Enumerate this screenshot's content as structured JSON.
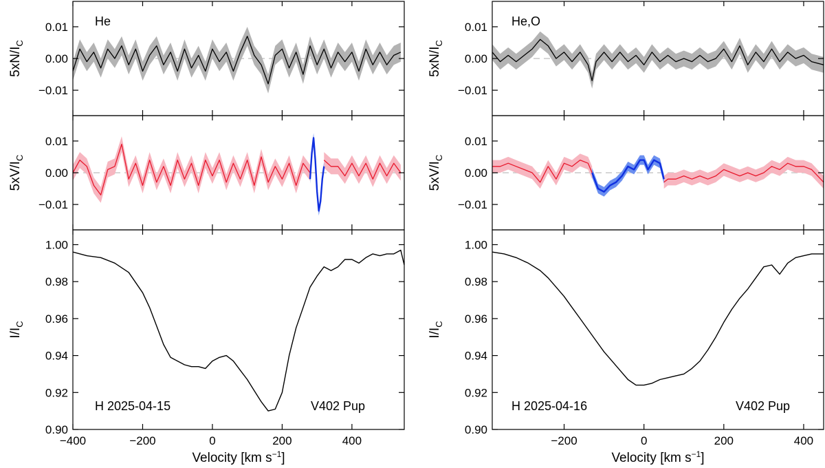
{
  "chart_data": [
    {
      "type": "line",
      "title": "",
      "columns": [
        {
          "star": "V402 Pup",
          "date_label": "H 2025-04-15",
          "element_label": "He",
          "xlim": [
            -400,
            550
          ],
          "xticks": [
            -400,
            -200,
            0,
            200,
            400
          ],
          "xtick_labels": [
            "−400",
            "−200",
            "0",
            "200",
            "400"
          ],
          "xlabel": "Velocity [km s⁻¹]",
          "panels": [
            {
              "kind": "null",
              "ylabel": "5xN/Iₗ",
              "ylim": [
                -0.018,
                0.018
              ],
              "yticks": [
                -0.01,
                0.0,
                0.01
              ],
              "ytick_labels": [
                "−0.01",
                "0.00",
                "0.01"
              ],
              "dashed_zero": true,
              "color": "#000000",
              "band_color": "#b3b3b3",
              "x": [
                -400,
                -380,
                -360,
                -340,
                -320,
                -300,
                -280,
                -260,
                -240,
                -220,
                -200,
                -180,
                -160,
                -140,
                -120,
                -100,
                -80,
                -60,
                -40,
                -20,
                0,
                20,
                40,
                60,
                80,
                100,
                120,
                140,
                160,
                180,
                200,
                220,
                240,
                260,
                280,
                300,
                320,
                340,
                360,
                380,
                400,
                420,
                440,
                460,
                480,
                500,
                520,
                540
              ],
              "y": [
                -0.004,
                0.003,
                -0.001,
                0.002,
                -0.003,
                0.003,
                0.0,
                0.004,
                -0.002,
                0.003,
                -0.004,
                0.001,
                0.004,
                -0.002,
                0.002,
                -0.004,
                0.003,
                -0.003,
                0.001,
                -0.004,
                0.003,
                -0.001,
                0.002,
                -0.004,
                0.002,
                0.007,
                0.001,
                -0.002,
                -0.008,
                0.001,
                0.003,
                -0.003,
                0.002,
                -0.005,
                0.004,
                -0.002,
                0.003,
                -0.003,
                0.002,
                -0.001,
                0.002,
                -0.004,
                0.003,
                -0.002,
                0.002,
                -0.002,
                0.001,
                0.002
              ],
              "err": 0.003
            },
            {
              "kind": "stokesV",
              "ylabel": "5xV/Iₗ",
              "ylim": [
                -0.018,
                0.018
              ],
              "yticks": [
                -0.01,
                0.0,
                0.01
              ],
              "ytick_labels": [
                "−0.01",
                "0.00",
                "0.01"
              ],
              "dashed_zero": true,
              "color": "#e8182c",
              "band_color": "#f7b6c0",
              "x": [
                -400,
                -380,
                -360,
                -340,
                -320,
                -300,
                -280,
                -260,
                -240,
                -220,
                -200,
                -180,
                -160,
                -140,
                -120,
                -100,
                -80,
                -60,
                -40,
                -20,
                0,
                20,
                40,
                60,
                80,
                100,
                120,
                140,
                160,
                180,
                200,
                220,
                240,
                260,
                280
              ],
              "y": [
                0.0,
                0.004,
                0.002,
                -0.004,
                -0.007,
                0.001,
                0.002,
                0.009,
                -0.002,
                0.003,
                -0.004,
                0.004,
                -0.003,
                0.002,
                -0.004,
                0.004,
                -0.002,
                0.003,
                -0.004,
                0.004,
                -0.001,
                0.004,
                -0.003,
                0.003,
                -0.002,
                0.004,
                -0.004,
                0.005,
                -0.003,
                0.002,
                -0.002,
                0.003,
                -0.004,
                0.003,
                0.0
              ],
              "x_tail": [
                320,
                340,
                360,
                380,
                400,
                420,
                440,
                460,
                480,
                500,
                520,
                540
              ],
              "y_tail": [
                0.004,
                0.002,
                0.002,
                -0.001,
                0.003,
                -0.001,
                0.003,
                -0.002,
                0.003,
                -0.001,
                0.003,
                0.0
              ],
              "err": 0.0025,
              "highlight": {
                "color": "#1030e0",
                "band_color": "#6b8ff0",
                "x": [
                  280,
                  285,
                  290,
                  295,
                  300,
                  305,
                  310,
                  315,
                  320
                ],
                "y": [
                  -0.002,
                  0.006,
                  0.011,
                  0.004,
                  -0.006,
                  -0.012,
                  -0.009,
                  -0.002,
                  0.002
                ],
                "err": 0.0015
              }
            },
            {
              "kind": "intensity",
              "ylabel": "I/Iₗ",
              "ylim": [
                0.9,
                1.008
              ],
              "yticks": [
                0.9,
                0.92,
                0.94,
                0.96,
                0.98,
                1.0
              ],
              "ytick_labels": [
                "0.90",
                "0.92",
                "0.94",
                "0.96",
                "0.98",
                "1.00"
              ],
              "color": "#000000",
              "x": [
                -400,
                -360,
                -320,
                -280,
                -240,
                -200,
                -180,
                -160,
                -140,
                -120,
                -100,
                -80,
                -60,
                -40,
                -20,
                0,
                20,
                40,
                60,
                80,
                100,
                120,
                140,
                160,
                180,
                200,
                220,
                240,
                260,
                280,
                300,
                320,
                340,
                360,
                380,
                400,
                420,
                440,
                460,
                480,
                500,
                520,
                540,
                550
              ],
              "y": [
                0.996,
                0.994,
                0.993,
                0.99,
                0.985,
                0.974,
                0.966,
                0.956,
                0.946,
                0.939,
                0.937,
                0.935,
                0.934,
                0.934,
                0.933,
                0.937,
                0.939,
                0.94,
                0.937,
                0.932,
                0.927,
                0.921,
                0.915,
                0.91,
                0.911,
                0.92,
                0.94,
                0.955,
                0.966,
                0.977,
                0.983,
                0.988,
                0.986,
                0.988,
                0.992,
                0.992,
                0.99,
                0.993,
                0.995,
                0.994,
                0.995,
                0.995,
                0.997,
                0.989
              ]
            }
          ]
        },
        {
          "star": "V402 Pup",
          "date_label": "H 2025-04-16",
          "element_label": "He,O",
          "xlim": [
            -380,
            450
          ],
          "xticks": [
            -200,
            0,
            200,
            400
          ],
          "xtick_labels": [
            "−200",
            "0",
            "200",
            "400"
          ],
          "xlabel": "Velocity [km s⁻¹]",
          "panels": [
            {
              "kind": "null",
              "ylabel": "5xN/Iₗ",
              "ylim": [
                -0.018,
                0.018
              ],
              "yticks": [
                -0.01,
                0.0,
                0.01
              ],
              "ytick_labels": [
                "−0.01",
                "0.00",
                "0.01"
              ],
              "dashed_zero": true,
              "color": "#000000",
              "band_color": "#b3b3b3",
              "x": [
                -380,
                -360,
                -340,
                -320,
                -300,
                -280,
                -260,
                -240,
                -220,
                -200,
                -180,
                -160,
                -140,
                -130,
                -120,
                -100,
                -80,
                -60,
                -40,
                -20,
                0,
                20,
                40,
                60,
                80,
                100,
                120,
                140,
                160,
                180,
                200,
                220,
                240,
                260,
                280,
                300,
                320,
                340,
                360,
                380,
                400,
                420,
                450
              ],
              "y": [
                0.002,
                -0.001,
                0.001,
                -0.001,
                0.001,
                0.003,
                0.006,
                0.004,
                0.0,
                0.002,
                -0.001,
                0.002,
                -0.002,
                -0.007,
                -0.001,
                0.002,
                -0.001,
                0.002,
                -0.001,
                0.001,
                -0.002,
                0.002,
                -0.001,
                0.001,
                -0.001,
                0.0,
                -0.001,
                0.001,
                -0.001,
                0.0,
                0.003,
                -0.001,
                0.004,
                -0.002,
                0.002,
                -0.001,
                0.003,
                -0.001,
                0.002,
                0.0,
                0.001,
                -0.001,
                -0.002
              ],
              "err": 0.0025
            },
            {
              "kind": "stokesV",
              "ylabel": "5xV/Iₗ",
              "ylim": [
                -0.018,
                0.018
              ],
              "yticks": [
                -0.01,
                0.0,
                0.01
              ],
              "ytick_labels": [
                "−0.01",
                "0.00",
                "0.01"
              ],
              "dashed_zero": true,
              "color": "#e8182c",
              "band_color": "#f7b6c0",
              "x": [
                -380,
                -360,
                -340,
                -320,
                -300,
                -280,
                -260,
                -240,
                -220,
                -200,
                -180,
                -160,
                -140,
                -130
              ],
              "y": [
                0.002,
                0.002,
                0.003,
                0.002,
                0.001,
                0.0,
                -0.003,
                0.002,
                -0.002,
                0.003,
                0.002,
                0.004,
                0.003,
                0.0
              ],
              "x_tail": [
                50,
                60,
                80,
                100,
                120,
                140,
                160,
                180,
                200,
                220,
                240,
                260,
                280,
                300,
                320,
                340,
                360,
                380,
                400,
                420,
                450
              ],
              "y_tail": [
                -0.003,
                -0.002,
                -0.002,
                -0.001,
                -0.002,
                -0.001,
                -0.002,
                -0.001,
                0.001,
                0.0,
                -0.001,
                0.0,
                -0.001,
                0.0,
                0.002,
                0.001,
                0.003,
                0.002,
                0.002,
                0.001,
                -0.003
              ],
              "err": 0.002,
              "highlight": {
                "color": "#1030e0",
                "band_color": "#6b8ff0",
                "x": [
                  -130,
                  -115,
                  -100,
                  -85,
                  -70,
                  -55,
                  -40,
                  -25,
                  -10,
                  0,
                  10,
                  25,
                  40,
                  50
                ],
                "y": [
                  0.0,
                  -0.005,
                  -0.006,
                  -0.004,
                  -0.003,
                  -0.001,
                  0.002,
                  0.001,
                  0.004,
                  0.004,
                  0.001,
                  0.004,
                  0.003,
                  -0.002
                ],
                "err": 0.0015
              }
            },
            {
              "kind": "intensity",
              "ylabel": "I/Iₗ",
              "ylim": [
                0.9,
                1.008
              ],
              "yticks": [
                0.9,
                0.92,
                0.94,
                0.96,
                0.98,
                1.0
              ],
              "ytick_labels": [
                "0.90",
                "0.92",
                "0.94",
                "0.96",
                "0.98",
                "1.00"
              ],
              "color": "#000000",
              "x": [
                -380,
                -350,
                -320,
                -290,
                -260,
                -240,
                -220,
                -200,
                -180,
                -160,
                -140,
                -120,
                -100,
                -80,
                -60,
                -40,
                -20,
                0,
                20,
                40,
                60,
                80,
                100,
                120,
                140,
                160,
                180,
                200,
                220,
                240,
                260,
                280,
                300,
                320,
                340,
                360,
                380,
                400,
                420,
                450
              ],
              "y": [
                0.996,
                0.995,
                0.993,
                0.99,
                0.986,
                0.982,
                0.977,
                0.972,
                0.966,
                0.96,
                0.954,
                0.948,
                0.942,
                0.937,
                0.932,
                0.927,
                0.924,
                0.924,
                0.925,
                0.927,
                0.928,
                0.929,
                0.93,
                0.933,
                0.937,
                0.943,
                0.95,
                0.958,
                0.965,
                0.971,
                0.976,
                0.982,
                0.988,
                0.989,
                0.984,
                0.99,
                0.993,
                0.994,
                0.995,
                0.995
              ]
            }
          ]
        }
      ]
    }
  ]
}
